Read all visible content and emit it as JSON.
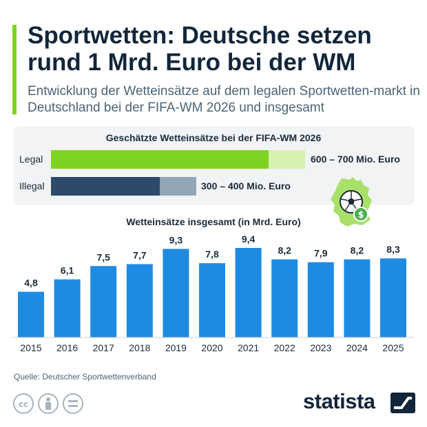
{
  "header": {
    "title": "Sportwetten: Deutsche setzen rund 1 Mrd. Euro bei der WM",
    "subtitle": "Entwicklung der Wetteinsätze auf dem legalen Sportwetten-markt in Deutschland bei der FIFA-WM 2026 und insgesamt"
  },
  "wm_panel": {
    "title": "Geschätzte Wetteinsätze bei der FIFA-WM 2026",
    "rows": [
      {
        "label": "Legal",
        "value_text": "600 – 700 Mio. Euro",
        "low": 600,
        "high": 700
      },
      {
        "label": "Illegal",
        "value_text": "300 – 400 Mio. Euro",
        "low": 300,
        "high": 400
      }
    ],
    "icon": "germany-map-football-dollar-icon"
  },
  "chart_data": {
    "type": "bar",
    "title": "Wetteinsätze insgesamt (in Mrd. Euro)",
    "categories": [
      "2015",
      "2016",
      "2017",
      "2018",
      "2019",
      "2020",
      "2021",
      "2022",
      "2023",
      "2024",
      "2025"
    ],
    "values": [
      4.8,
      6.1,
      7.5,
      7.7,
      9.3,
      7.8,
      9.4,
      8.2,
      7.9,
      8.2,
      8.3
    ],
    "value_labels": [
      "4,8",
      "6,1",
      "7,5",
      "7,7",
      "9,3",
      "7,8",
      "9,4",
      "8,2",
      "7,9",
      "8,2",
      "8,3"
    ],
    "ylim": [
      0,
      9.4
    ],
    "grid": false,
    "color": "#1e8be3"
  },
  "footer": {
    "source": "Quelle: Deutscher Sportwettenverband",
    "logo": "statista",
    "license_icons": [
      "cc-icon",
      "person-icon",
      "equals-icon"
    ]
  },
  "colors": {
    "accent": "#7ed321",
    "legal_dark": "#7ed321",
    "legal_light": "#d6f2b0",
    "illegal_dark": "#2e4a6b",
    "illegal_light": "#93a6b6"
  }
}
